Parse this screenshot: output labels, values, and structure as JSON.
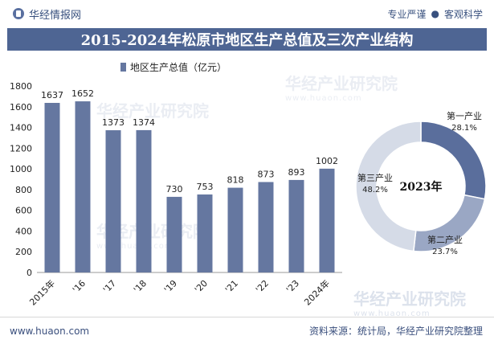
{
  "header": {
    "brand": "华经情报网",
    "tagline_left": "专业严谨",
    "tagline_sep": "●",
    "tagline_right": "客观科学"
  },
  "title": "2015-2024年松原市地区生产总值及三次产业结构",
  "watermark": {
    "cn": "华经产业研究院",
    "en": "www.huaon.com"
  },
  "footer": {
    "website": "www.huaon.com",
    "source": "资料来源：统计局，华经产业研究院整理"
  },
  "colors": {
    "bar": "#6577a0",
    "primary": "#5a6e9c",
    "secondary": "#9aa7c4",
    "tertiary": "#d5dbe7",
    "title_bg": "#4e6593"
  },
  "chart_data": [
    {
      "type": "bar",
      "title": "",
      "legend": "地区生产总值（亿元）",
      "categories": [
        "2015年",
        "'16",
        "'17",
        "'18",
        "'19",
        "'20",
        "'21",
        "'22",
        "'23",
        "2024年"
      ],
      "values": [
        1637,
        1652,
        1373,
        1374,
        730,
        753,
        818,
        873,
        893,
        1002
      ],
      "ylim": [
        0,
        1800
      ],
      "yticks": [
        0,
        200,
        400,
        600,
        800,
        1000,
        1200,
        1400,
        1600,
        1800
      ],
      "xlabel": "",
      "ylabel": ""
    },
    {
      "type": "pie",
      "variant": "donut",
      "center_label": "2023年",
      "slices": [
        {
          "name": "第一产业",
          "value": 28.1,
          "label": "28.1%"
        },
        {
          "name": "第二产业",
          "value": 23.7,
          "label": "23.7%"
        },
        {
          "name": "第三产业",
          "value": 48.2,
          "label": "48.2%"
        }
      ]
    }
  ]
}
